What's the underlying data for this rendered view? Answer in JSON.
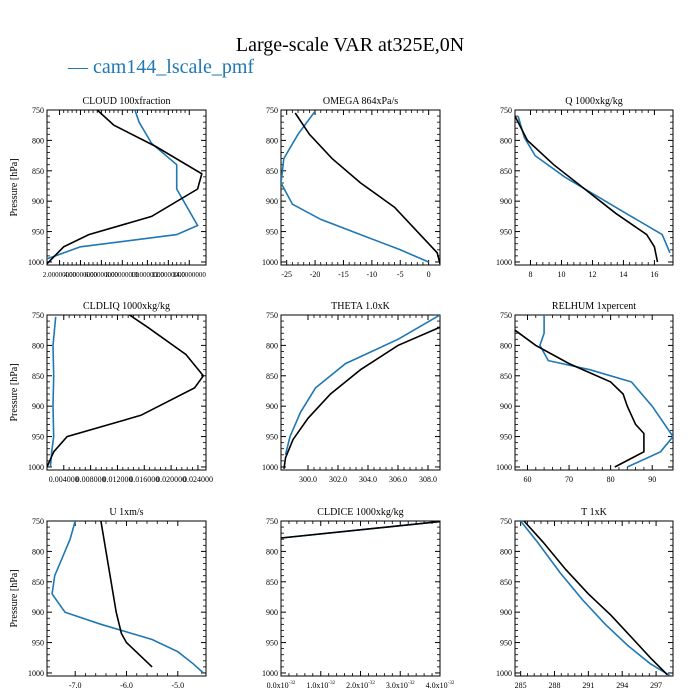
{
  "figure": {
    "title": "Large-scale VAR at325E,0N",
    "legend": [
      {
        "name": "cam144_lscale_pmf",
        "color": "#1f77b4",
        "glyph": "—"
      }
    ],
    "line_colors": {
      "black": "#000000",
      "blue": "#1f77b4"
    }
  },
  "chart_data": [
    {
      "type": "line",
      "title": "CLOUD  100xfraction",
      "ylabel": "Pressure [hPa]",
      "ylim": [
        1005,
        750
      ],
      "yticks": [
        750,
        800,
        850,
        900,
        950,
        1000
      ],
      "xlim": [
        0.0,
        0.38
      ],
      "xticks": [
        {
          "v": 0.03,
          "t": "2.00000000"
        },
        {
          "v": 0.08,
          "t": "4.00000000"
        },
        {
          "v": 0.13,
          "t": "6.00000000"
        },
        {
          "v": 0.18,
          "t": "8.00000000"
        },
        {
          "v": 0.24,
          "t": "10.0000000"
        },
        {
          "v": 0.29,
          "t": "12.0000000"
        },
        {
          "v": 0.34,
          "t": "14.0000000"
        }
      ],
      "series": [
        {
          "color": "black",
          "x": [
            0.12,
            0.16,
            0.26,
            0.37,
            0.36,
            0.25,
            0.1,
            0.04,
            0.0
          ],
          "y": [
            750,
            775,
            810,
            855,
            880,
            925,
            955,
            975,
            1003
          ]
        },
        {
          "color": "blue",
          "x": [
            0.21,
            0.22,
            0.25,
            0.31,
            0.31,
            0.36,
            0.31,
            0.08,
            0.0
          ],
          "y": [
            750,
            770,
            805,
            840,
            880,
            940,
            955,
            975,
            995
          ]
        }
      ]
    },
    {
      "type": "line",
      "title": "OMEGA  864xPa/s",
      "ylabel": "",
      "ylim": [
        1005,
        750
      ],
      "yticks": [
        750,
        800,
        850,
        900,
        950,
        1000
      ],
      "xlim": [
        -26,
        2
      ],
      "xticks": [
        {
          "v": -25,
          "t": "-25"
        },
        {
          "v": -20,
          "t": "-20"
        },
        {
          "v": -15,
          "t": "-15"
        },
        {
          "v": -10,
          "t": "-10"
        },
        {
          "v": -5,
          "t": "-5"
        },
        {
          "v": 0,
          "t": "0"
        }
      ],
      "series": [
        {
          "color": "black",
          "x": [
            -23.5,
            -21,
            -17,
            -12,
            -6,
            -2,
            1.5,
            2
          ],
          "y": [
            755,
            790,
            830,
            870,
            910,
            950,
            985,
            1003
          ]
        },
        {
          "color": "blue",
          "x": [
            -20,
            -23,
            -25.5,
            -26,
            -24,
            -19,
            -12,
            -5,
            0
          ],
          "y": [
            752,
            790,
            830,
            870,
            905,
            930,
            955,
            980,
            1000
          ]
        }
      ]
    },
    {
      "type": "line",
      "title": "Q  1000xkg/kg",
      "ylabel": "",
      "ylim": [
        1005,
        750
      ],
      "yticks": [
        750,
        800,
        850,
        900,
        950,
        1000
      ],
      "xlim": [
        7,
        17.2
      ],
      "xticks": [
        {
          "v": 8,
          "t": "8"
        },
        {
          "v": 10,
          "t": "10"
        },
        {
          "v": 12,
          "t": "12"
        },
        {
          "v": 14,
          "t": "14"
        },
        {
          "v": 16,
          "t": "16"
        }
      ],
      "series": [
        {
          "color": "black",
          "x": [
            7.0,
            7.8,
            9.5,
            11.5,
            13.5,
            15.5,
            16.0,
            16.2
          ],
          "y": [
            760,
            800,
            840,
            880,
            920,
            955,
            975,
            1000
          ]
        },
        {
          "color": "blue",
          "x": [
            7.2,
            7.6,
            8.3,
            10.2,
            12.5,
            14.5,
            16.5,
            17.0
          ],
          "y": [
            760,
            795,
            825,
            860,
            895,
            925,
            955,
            985
          ]
        }
      ]
    },
    {
      "type": "line",
      "title": "CLDLIQ  1000xkg/kg",
      "ylabel": "Pressure [hPa]",
      "ylim": [
        1005,
        750
      ],
      "yticks": [
        750,
        800,
        850,
        900,
        950,
        1000
      ],
      "xlim": [
        0.0015,
        0.0252
      ],
      "xticks": [
        {
          "v": 0.004,
          "t": "0.004000"
        },
        {
          "v": 0.008,
          "t": "0.008000"
        },
        {
          "v": 0.012,
          "t": "0.012000"
        },
        {
          "v": 0.016,
          "t": "0.016000"
        },
        {
          "v": 0.02,
          "t": "0.020000"
        },
        {
          "v": 0.024,
          "t": "0.024000"
        }
      ],
      "series": [
        {
          "color": "black",
          "x": [
            0.0138,
            0.0165,
            0.0222,
            0.0248,
            0.0235,
            0.0155,
            0.0045,
            0.0025,
            0.0015
          ],
          "y": [
            750,
            770,
            815,
            850,
            870,
            915,
            950,
            975,
            1000
          ]
        },
        {
          "color": "blue",
          "x": [
            0.0028,
            0.0024,
            0.0025,
            0.0024,
            0.0025,
            0.0022,
            0.002
          ],
          "y": [
            753,
            800,
            850,
            900,
            950,
            975,
            1000
          ]
        }
      ]
    },
    {
      "type": "line",
      "title": "THETA  1.0xK",
      "ylabel": "",
      "ylim": [
        1005,
        750
      ],
      "yticks": [
        750,
        800,
        850,
        900,
        950,
        1000
      ],
      "xlim": [
        298.2,
        308.8
      ],
      "xticks": [
        {
          "v": 300,
          "t": "300.0"
        },
        {
          "v": 302,
          "t": "302.0"
        },
        {
          "v": 304,
          "t": "304.0"
        },
        {
          "v": 306,
          "t": "306.0"
        },
        {
          "v": 308,
          "t": "308.0"
        }
      ],
      "series": [
        {
          "color": "black",
          "x": [
            308.8,
            306,
            303.5,
            301.5,
            300,
            299,
            298.5,
            298.4
          ],
          "y": [
            770,
            800,
            840,
            880,
            920,
            955,
            985,
            1003
          ]
        },
        {
          "color": "blue",
          "x": [
            308.8,
            306,
            302.5,
            300.5,
            299.5,
            298.8,
            298.5
          ],
          "y": [
            750,
            790,
            830,
            870,
            910,
            950,
            980
          ]
        }
      ]
    },
    {
      "type": "line",
      "title": "RELHUM  1xpercent",
      "ylabel": "",
      "ylim": [
        1005,
        750
      ],
      "yticks": [
        750,
        800,
        850,
        900,
        950,
        1000
      ],
      "xlim": [
        57,
        95
      ],
      "xticks": [
        {
          "v": 60,
          "t": "60"
        },
        {
          "v": 70,
          "t": "70"
        },
        {
          "v": 80,
          "t": "80"
        },
        {
          "v": 90,
          "t": "90"
        }
      ],
      "series": [
        {
          "color": "black",
          "x": [
            57,
            62,
            70,
            80,
            83,
            84,
            86,
            88,
            88,
            81
          ],
          "y": [
            775,
            800,
            830,
            860,
            880,
            900,
            930,
            945,
            975,
            1000
          ]
        },
        {
          "color": "blue",
          "x": [
            64,
            64,
            63,
            65,
            75,
            85,
            90,
            95,
            92,
            84
          ],
          "y": [
            750,
            780,
            800,
            825,
            840,
            860,
            900,
            950,
            975,
            1000
          ]
        }
      ]
    },
    {
      "type": "line",
      "title": "U  1xm/s",
      "ylabel": "Pressure [hPa]",
      "ylim": [
        1005,
        750
      ],
      "yticks": [
        750,
        800,
        850,
        900,
        950,
        1000
      ],
      "xlim": [
        -7.55,
        -4.45
      ],
      "xticks": [
        {
          "v": -7,
          "t": "-7.0"
        },
        {
          "v": -6,
          "t": "-6.0"
        },
        {
          "v": -5,
          "t": "-5.0"
        }
      ],
      "series": [
        {
          "color": "black",
          "x": [
            -6.5,
            -6.4,
            -6.3,
            -6.2,
            -6.1,
            -6.0,
            -5.5
          ],
          "y": [
            750,
            800,
            850,
            900,
            935,
            950,
            990
          ]
        },
        {
          "color": "blue",
          "x": [
            -7.0,
            -7.1,
            -7.25,
            -7.4,
            -7.45,
            -7.2,
            -6.5,
            -5.5,
            -5.0,
            -4.7,
            -4.5
          ],
          "y": [
            750,
            780,
            810,
            840,
            870,
            900,
            920,
            945,
            965,
            985,
            1000
          ]
        }
      ]
    },
    {
      "type": "line",
      "title": "CLDICE  1000xkg/kg",
      "ylabel": "",
      "ylim": [
        1005,
        750
      ],
      "yticks": [
        750,
        800,
        850,
        900,
        950,
        1000
      ],
      "xlim": [
        0,
        4
      ],
      "xticks": [
        {
          "v": 0,
          "t": "0.0x10"
        },
        {
          "v": 1,
          "t": "1.0x10"
        },
        {
          "v": 2,
          "t": "2.0x10"
        },
        {
          "v": 3,
          "t": "3.0x10"
        },
        {
          "v": 4,
          "t": "4.0x10"
        }
      ],
      "xtick_exponent": "-32",
      "series": [
        {
          "color": "black",
          "x": [
            0.0,
            4.0
          ],
          "y": [
            778,
            751
          ]
        },
        {
          "color": "blue",
          "x": [
            0.0,
            4.0
          ],
          "y": [
            778,
            751
          ]
        }
      ]
    },
    {
      "type": "line",
      "title": "T  1xK",
      "ylabel": "",
      "ylim": [
        1005,
        750
      ],
      "yticks": [
        750,
        800,
        850,
        900,
        950,
        1000
      ],
      "xlim": [
        284.5,
        298.5
      ],
      "xticks": [
        {
          "v": 285,
          "t": "285"
        },
        {
          "v": 288,
          "t": "288"
        },
        {
          "v": 291,
          "t": "291"
        },
        {
          "v": 294,
          "t": "294"
        },
        {
          "v": 297,
          "t": "297"
        }
      ],
      "series": [
        {
          "color": "black",
          "x": [
            285.3,
            287,
            289,
            291,
            293,
            295,
            296.5,
            298
          ],
          "y": [
            750,
            785,
            830,
            870,
            905,
            945,
            975,
            1003
          ]
        },
        {
          "color": "blue",
          "x": [
            285,
            286.5,
            288.5,
            290.5,
            292.5,
            294.5,
            296.5,
            298.3
          ],
          "y": [
            750,
            785,
            835,
            880,
            920,
            955,
            985,
            1005
          ]
        }
      ]
    }
  ]
}
